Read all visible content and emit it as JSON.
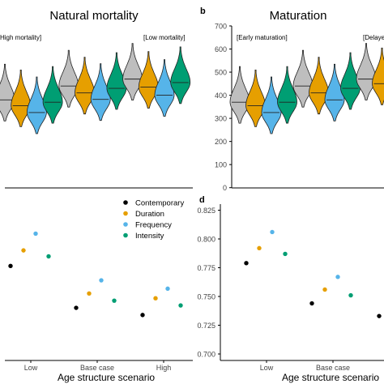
{
  "labels": {
    "panel_b_letter": "b",
    "panel_d_letter": "d",
    "title_a": "Natural mortality",
    "title_b": "Maturation",
    "annot_a_left": "High mortality]",
    "annot_a_right": "[Low mortality]",
    "annot_b_left": "[Early maturation]",
    "annot_b_right": "[Delaye",
    "xlabel_c": "Age structure scenario",
    "xlabel_d": "Age structure scenario"
  },
  "colors": {
    "Contemporary": "#000000",
    "Duration": "#E69F00",
    "Frequency": "#56B4E9",
    "Intensity": "#009E73",
    "Baseline": "#BEBEBE"
  },
  "chart_data": [
    {
      "panel": "a",
      "type": "violin",
      "title": "Natural mortality",
      "annotations": [
        "High mortality]",
        "[Low mortality]"
      ],
      "groups": [
        {
          "violins": [
            {
              "color": "Baseline",
              "median": 380
            },
            {
              "color": "Duration",
              "median": 355
            },
            {
              "color": "Frequency",
              "median": 325
            },
            {
              "color": "Intensity",
              "median": 370
            }
          ]
        },
        {
          "violins": [
            {
              "color": "Baseline",
              "median": 440
            },
            {
              "color": "Duration",
              "median": 410
            },
            {
              "color": "Frequency",
              "median": 382
            },
            {
              "color": "Intensity",
              "median": 430
            }
          ]
        },
        {
          "violins": [
            {
              "color": "Baseline",
              "median": 470
            },
            {
              "color": "Duration",
              "median": 435
            },
            {
              "color": "Frequency",
              "median": 400
            },
            {
              "color": "Intensity",
              "median": 455
            }
          ]
        }
      ],
      "ylim": [
        0,
        700
      ]
    },
    {
      "panel": "b",
      "type": "violin",
      "title": "Maturation",
      "annotations": [
        "[Early maturation]",
        "[Delaye"
      ],
      "yticks": [
        0,
        100,
        200,
        300,
        400,
        500,
        600,
        700
      ],
      "ylim": [
        0,
        700
      ],
      "groups": [
        {
          "violins": [
            {
              "color": "Baseline",
              "median": 370
            },
            {
              "color": "Duration",
              "median": 355
            },
            {
              "color": "Frequency",
              "median": 325
            },
            {
              "color": "Intensity",
              "median": 370
            }
          ]
        },
        {
          "violins": [
            {
              "color": "Baseline",
              "median": 440
            },
            {
              "color": "Duration",
              "median": 410
            },
            {
              "color": "Frequency",
              "median": 380
            },
            {
              "color": "Intensity",
              "median": 430
            }
          ]
        },
        {
          "violins": [
            {
              "color": "Baseline",
              "median": 470
            },
            {
              "color": "Duration",
              "median": 450
            }
          ]
        }
      ]
    },
    {
      "panel": "c",
      "type": "scatter",
      "xlabel": "Age structure scenario",
      "categories": [
        "Low",
        "Base case",
        "High"
      ],
      "ylim": [
        0.7,
        0.83
      ],
      "legend": [
        "Contemporary",
        "Duration",
        "Frequency",
        "Intensity"
      ],
      "legend_position": "top-right",
      "series": [
        {
          "name": "Contemporary",
          "values": [
            0.779,
            0.744,
            0.738
          ]
        },
        {
          "name": "Duration",
          "values": [
            0.792,
            0.756,
            0.752
          ]
        },
        {
          "name": "Frequency",
          "values": [
            0.806,
            0.767,
            0.76
          ]
        },
        {
          "name": "Intensity",
          "values": [
            0.787,
            0.75,
            0.746
          ]
        }
      ]
    },
    {
      "panel": "d",
      "type": "scatter",
      "xlabel": "Age structure scenario",
      "categories": [
        "Low",
        "Base case",
        "High"
      ],
      "yticks": [
        "0.700",
        "0.725",
        "0.750",
        "0.775",
        "0.800",
        "0.825"
      ],
      "ylim": [
        0.7,
        0.835
      ],
      "series": [
        {
          "name": "Contemporary",
          "values": [
            0.779,
            0.744,
            0.733
          ]
        },
        {
          "name": "Duration",
          "values": [
            0.792,
            0.756,
            null
          ]
        },
        {
          "name": "Frequency",
          "values": [
            0.806,
            0.767,
            null
          ]
        },
        {
          "name": "Intensity",
          "values": [
            0.787,
            0.751,
            null
          ]
        }
      ]
    }
  ]
}
